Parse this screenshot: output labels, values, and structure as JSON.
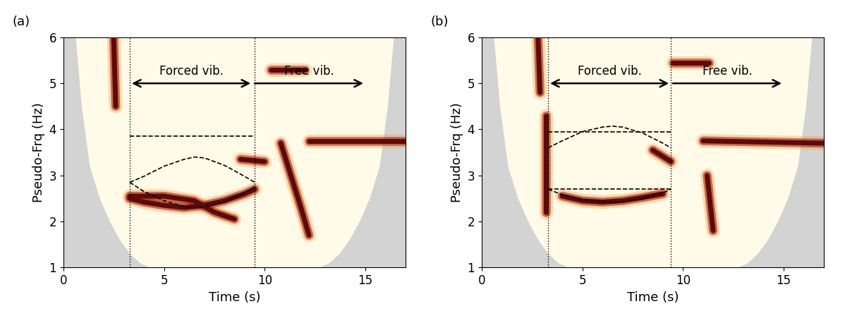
{
  "chart_data": [
    {
      "type": "spectrogram",
      "title": "(a)",
      "x_label": "Time (s)",
      "y_label": "Pseudo-Frq (Hz)",
      "xlim": [
        0,
        17
      ],
      "ylim": [
        1,
        6
      ],
      "xticks": [
        0,
        5,
        10,
        15
      ],
      "yticks": [
        1,
        2,
        3,
        4,
        5,
        6
      ],
      "vlines": [
        3.3,
        9.5
      ],
      "annotations": [
        {
          "text": "Forced vib.",
          "x": [
            3.3,
            9.4
          ],
          "y": 5,
          "arrow": "both"
        },
        {
          "text": "Free vib.",
          "x": [
            9.4,
            15
          ],
          "y": 5,
          "arrow": "end"
        }
      ],
      "series": [
        {
          "type": "area",
          "color": "#d3d3d3",
          "x": [
            0,
            0.6,
            0.9,
            1.3,
            1.8,
            2.3,
            2.8,
            3.3,
            3.8,
            4.3,
            12.7,
            13.2,
            13.7,
            14.2,
            14.7,
            15.2,
            15.7,
            16.1,
            16.4,
            17
          ],
          "values": [
            6,
            6,
            4.5,
            3.2,
            2.5,
            2.0,
            1.6,
            1.3,
            1.1,
            1.0,
            1.0,
            1.1,
            1.3,
            1.6,
            2.0,
            2.5,
            3.2,
            4.5,
            6,
            6
          ]
        },
        {
          "type": "ridge",
          "color": "#5c0a0a",
          "x": [
            12.2,
            17
          ],
          "values": [
            3.75,
            3.75
          ]
        },
        {
          "type": "ridge",
          "color": "#5c0a0a",
          "x": [
            3.3,
            4,
            5,
            6,
            7,
            8,
            9,
            9.5
          ],
          "values": [
            2.5,
            2.42,
            2.35,
            2.3,
            2.35,
            2.45,
            2.6,
            2.7
          ]
        },
        {
          "type": "ridge",
          "color": "#5c0a0a",
          "x": [
            3.3,
            5,
            6.5,
            7.5,
            8.5
          ],
          "values": [
            2.55,
            2.55,
            2.45,
            2.2,
            2.05
          ]
        },
        {
          "type": "ridge",
          "color": "#5c0a0a",
          "x": [
            2.5,
            2.6
          ],
          "values": [
            6,
            4.5
          ]
        },
        {
          "type": "ridge",
          "color": "#5c0a0a",
          "x": [
            10.3,
            12
          ],
          "values": [
            5.3,
            5.3
          ]
        },
        {
          "type": "ridge",
          "color": "#5c0a0a",
          "x": [
            10.8,
            11.3,
            11.8,
            12.2
          ],
          "values": [
            3.7,
            3.0,
            2.3,
            1.7
          ]
        },
        {
          "type": "ridge",
          "color": "#5c0a0a",
          "x": [
            8.8,
            10
          ],
          "values": [
            3.35,
            3.3
          ]
        },
        {
          "type": "line",
          "color": "black",
          "line_style": "dashed",
          "x": [
            3.3,
            9.5
          ],
          "values": [
            3.85,
            3.85
          ]
        },
        {
          "type": "line",
          "color": "black",
          "line_style": "dashed",
          "x": [
            3.3,
            4,
            5,
            6,
            6.5,
            7,
            8,
            9,
            9.5
          ],
          "values": [
            2.85,
            2.98,
            3.2,
            3.35,
            3.4,
            3.38,
            3.22,
            2.98,
            2.85
          ]
        },
        {
          "type": "line",
          "color": "black",
          "line_style": "dashed",
          "x": [
            3.3,
            4,
            5,
            6,
            6.5,
            7,
            8,
            9,
            9.5
          ],
          "values": [
            2.85,
            2.65,
            2.45,
            2.32,
            2.3,
            2.32,
            2.42,
            2.62,
            2.75
          ]
        }
      ]
    },
    {
      "type": "spectrogram",
      "title": "(b)",
      "x_label": "Time (s)",
      "y_label": "Pseudo-Frq (Hz)",
      "xlim": [
        0,
        17
      ],
      "ylim": [
        1,
        6
      ],
      "xticks": [
        0,
        5,
        10,
        15
      ],
      "yticks": [
        1,
        2,
        3,
        4,
        5,
        6
      ],
      "vlines": [
        3.3,
        9.4
      ],
      "annotations": [
        {
          "text": "Forced vib.",
          "x": [
            3.3,
            9.4
          ],
          "y": 5,
          "arrow": "both"
        },
        {
          "text": "Free vib.",
          "x": [
            9.4,
            15
          ],
          "y": 5,
          "arrow": "end"
        }
      ],
      "series": [
        {
          "type": "area",
          "color": "#d3d3d3",
          "x": [
            0,
            0.6,
            0.9,
            1.3,
            1.8,
            2.3,
            2.8,
            3.3,
            3.8,
            4.3,
            12.7,
            13.2,
            13.7,
            14.2,
            14.7,
            15.2,
            15.7,
            16.1,
            16.4,
            17
          ],
          "values": [
            6,
            6,
            4.5,
            3.2,
            2.5,
            2.0,
            1.6,
            1.3,
            1.1,
            1.0,
            1.0,
            1.1,
            1.3,
            1.6,
            2.0,
            2.5,
            3.2,
            4.5,
            6,
            6
          ]
        },
        {
          "type": "ridge",
          "color": "#5c0a0a",
          "x": [
            11,
            17
          ],
          "values": [
            3.75,
            3.7
          ]
        },
        {
          "type": "ridge",
          "color": "#5c0a0a",
          "x": [
            4,
            5,
            6,
            7,
            8,
            9
          ],
          "values": [
            2.55,
            2.45,
            2.42,
            2.45,
            2.52,
            2.6
          ]
        },
        {
          "type": "ridge",
          "color": "#5c0a0a",
          "x": [
            3.2,
            3.2
          ],
          "values": [
            4.3,
            2.2
          ]
        },
        {
          "type": "ridge",
          "color": "#5c0a0a",
          "x": [
            9.5,
            11.3
          ],
          "values": [
            5.45,
            5.45
          ]
        },
        {
          "type": "ridge",
          "color": "#5c0a0a",
          "x": [
            2.8,
            2.9
          ],
          "values": [
            6,
            4.8
          ]
        },
        {
          "type": "ridge",
          "color": "#5c0a0a",
          "x": [
            8.5,
            9.4
          ],
          "values": [
            3.55,
            3.3
          ]
        },
        {
          "type": "ridge",
          "color": "#5c0a0a",
          "x": [
            11.2,
            11.5
          ],
          "values": [
            3.0,
            1.8
          ]
        },
        {
          "type": "line",
          "color": "black",
          "line_style": "dashed",
          "x": [
            3.3,
            9.4
          ],
          "values": [
            3.95,
            3.95
          ]
        },
        {
          "type": "line",
          "color": "black",
          "line_style": "dashed",
          "x": [
            3.3,
            4,
            5,
            6,
            6.5,
            7,
            8,
            9,
            9.4
          ],
          "values": [
            3.6,
            3.75,
            3.95,
            4.05,
            4.07,
            4.05,
            3.92,
            3.7,
            3.6
          ]
        },
        {
          "type": "line",
          "color": "black",
          "line_style": "dashed",
          "x": [
            3.3,
            9.4
          ],
          "values": [
            2.7,
            2.7
          ]
        },
        {
          "type": "line",
          "color": "black",
          "line_style": "dashed",
          "x": [
            3.3,
            4,
            5,
            6,
            6.5,
            7,
            8,
            9,
            9.4
          ],
          "values": [
            2.7,
            2.58,
            2.47,
            2.43,
            2.42,
            2.43,
            2.5,
            2.62,
            2.7
          ]
        }
      ]
    }
  ]
}
